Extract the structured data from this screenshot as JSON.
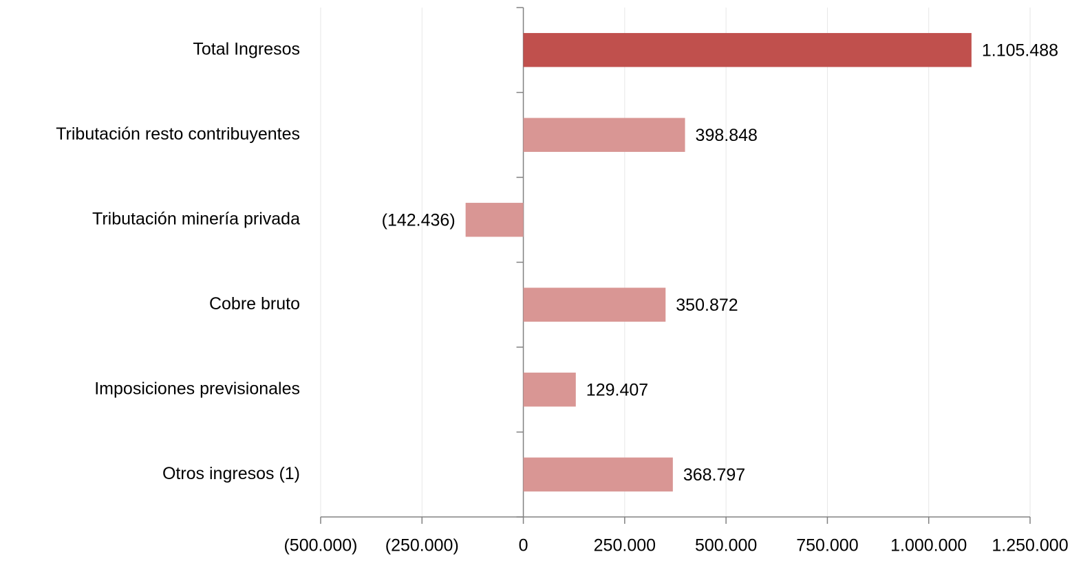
{
  "chart_data": {
    "type": "hbar",
    "categories": [
      "Total Ingresos",
      "Tributación resto contribuyentes",
      "Tributación minería privada",
      "Cobre bruto",
      "Imposiciones previsionales",
      "Otros ingresos (1)"
    ],
    "values": [
      1105488,
      398848,
      -142436,
      350872,
      129407,
      368797
    ],
    "value_labels": [
      "1.105.488",
      "398.848",
      "(142.436)",
      "350.872",
      "129.407",
      "368.797"
    ],
    "colors": [
      "#c0504d",
      "#d99694",
      "#d99694",
      "#d99694",
      "#d99694",
      "#d99694"
    ],
    "xlim": [
      -500000,
      1250000
    ],
    "xticks": [
      {
        "value": -500000,
        "label": "(500.000)"
      },
      {
        "value": -250000,
        "label": "(250.000)"
      },
      0,
      {
        "value": 250000,
        "label": "250.000"
      },
      {
        "value": 500000,
        "label": "500.000"
      },
      {
        "value": 750000,
        "label": "750.000"
      },
      {
        "value": 1000000,
        "label": "1.000.000"
      },
      {
        "value": 1250000,
        "label": "1.250.000"
      }
    ],
    "grid": true
  }
}
